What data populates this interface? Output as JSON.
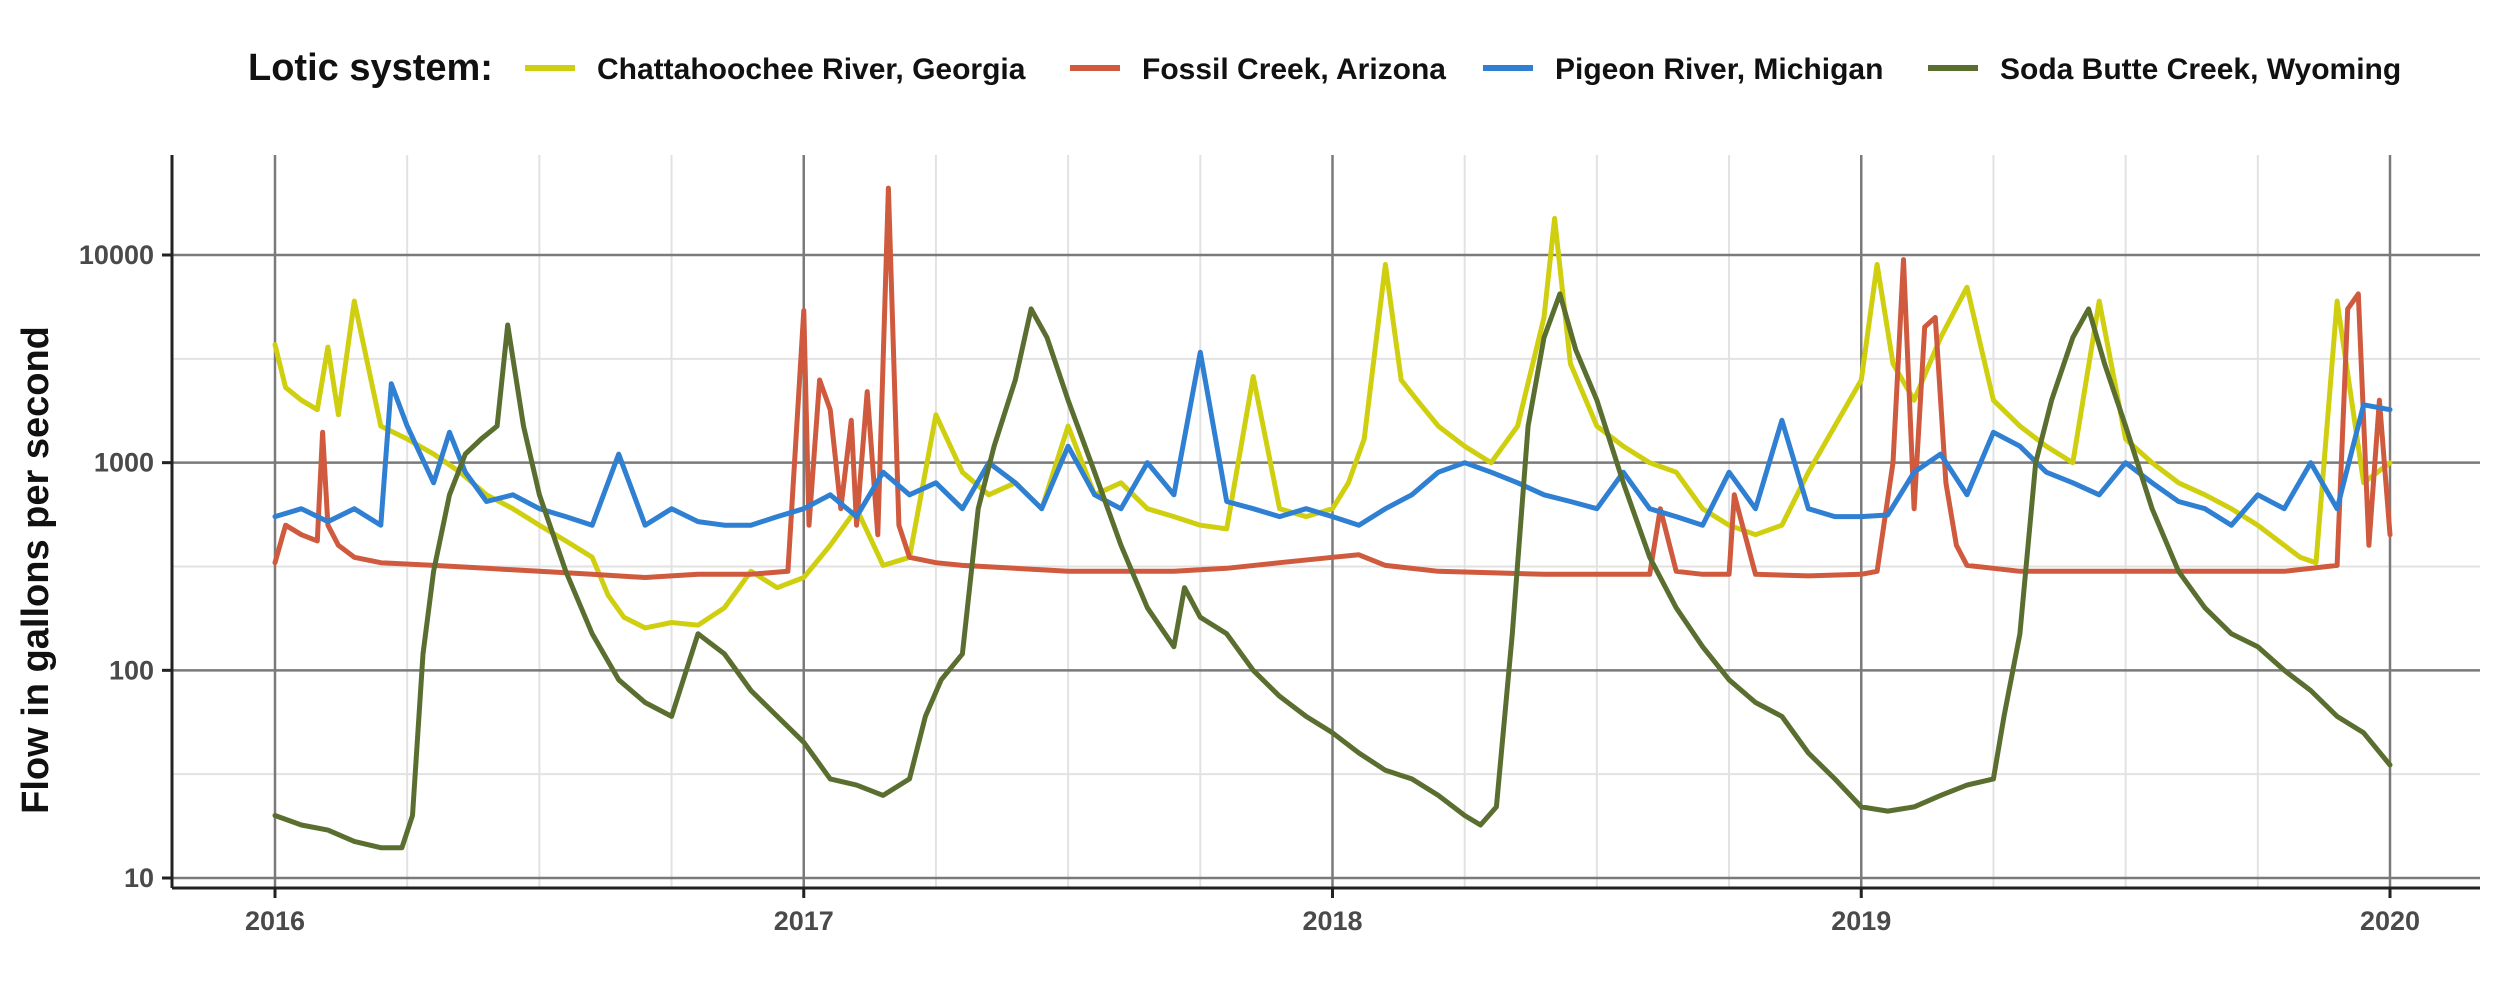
{
  "chart_data": {
    "type": "line",
    "title": "",
    "xlabel": "",
    "ylabel": "Flow in gallons per second",
    "yscale": "log10",
    "ylim": [
      10,
      30000
    ],
    "xlim": [
      2015.8,
      2020.2
    ],
    "x_ticks": [
      2016,
      2017,
      2018,
      2019,
      2020
    ],
    "x_tick_labels": [
      "2016",
      "2017",
      "2018",
      "2019",
      "2020"
    ],
    "y_ticks": [
      10,
      100,
      1000,
      10000
    ],
    "y_tick_labels": [
      "10",
      "100",
      "1000",
      "10000"
    ],
    "grid": true,
    "legend": {
      "title": "Lotic system:",
      "placement": "top",
      "entries": [
        "Chattahoochee River, Georgia",
        "Fossil Creek, Arizona",
        "Pigeon River, Michigan",
        "Soda Butte Creek, Wyoming"
      ]
    },
    "series": [
      {
        "name": "Chattahoochee River, Georgia",
        "color": "#cfcf10",
        "x": [
          2016.0,
          2016.02,
          2016.05,
          2016.08,
          2016.1,
          2016.12,
          2016.15,
          2016.2,
          2016.25,
          2016.3,
          2016.35,
          2016.4,
          2016.45,
          2016.5,
          2016.55,
          2016.6,
          2016.63,
          2016.66,
          2016.7,
          2016.75,
          2016.8,
          2016.85,
          2016.9,
          2016.95,
          2017.0,
          2017.05,
          2017.1,
          2017.15,
          2017.2,
          2017.25,
          2017.3,
          2017.35,
          2017.4,
          2017.45,
          2017.5,
          2017.55,
          2017.6,
          2017.65,
          2017.7,
          2017.75,
          2017.8,
          2017.85,
          2017.9,
          2017.95,
          2018.0,
          2018.03,
          2018.06,
          2018.1,
          2018.13,
          2018.16,
          2018.2,
          2018.25,
          2018.3,
          2018.35,
          2018.4,
          2018.42,
          2018.45,
          2018.5,
          2018.55,
          2018.6,
          2018.65,
          2018.7,
          2018.75,
          2018.8,
          2018.85,
          2018.9,
          2018.95,
          2019.0,
          2019.03,
          2019.06,
          2019.1,
          2019.15,
          2019.2,
          2019.25,
          2019.3,
          2019.35,
          2019.4,
          2019.45,
          2019.5,
          2019.55,
          2019.6,
          2019.65,
          2019.7,
          2019.75,
          2019.8,
          2019.83,
          2019.86,
          2019.9,
          2019.95,
          2020.0
        ],
        "values": [
          3700,
          2300,
          2000,
          1800,
          3600,
          1700,
          6000,
          1500,
          1300,
          1100,
          900,
          700,
          600,
          500,
          420,
          350,
          230,
          180,
          160,
          170,
          165,
          200,
          300,
          250,
          280,
          400,
          600,
          320,
          350,
          1700,
          900,
          700,
          800,
          600,
          1500,
          700,
          800,
          600,
          550,
          500,
          480,
          2600,
          600,
          550,
          600,
          800,
          1300,
          9000,
          2500,
          2000,
          1500,
          1200,
          1000,
          1500,
          5000,
          15000,
          3000,
          1500,
          1200,
          1000,
          900,
          600,
          500,
          450,
          500,
          900,
          1500,
          2500,
          9000,
          3000,
          2000,
          4000,
          7000,
          2000,
          1500,
          1200,
          1000,
          6000,
          1300,
          1000,
          800,
          700,
          600,
          500,
          400,
          350,
          330,
          6000,
          800,
          1000
        ]
      },
      {
        "name": "Fossil Creek, Arizona",
        "color": "#cf5a3e",
        "x": [
          2016.0,
          2016.02,
          2016.05,
          2016.08,
          2016.09,
          2016.1,
          2016.12,
          2016.15,
          2016.2,
          2016.3,
          2016.4,
          2016.5,
          2016.6,
          2016.7,
          2016.8,
          2016.9,
          2016.97,
          2017.0,
          2017.01,
          2017.03,
          2017.05,
          2017.07,
          2017.09,
          2017.1,
          2017.12,
          2017.14,
          2017.16,
          2017.18,
          2017.2,
          2017.25,
          2017.3,
          2017.4,
          2017.5,
          2017.6,
          2017.7,
          2017.8,
          2017.9,
          2018.0,
          2018.05,
          2018.1,
          2018.2,
          2018.3,
          2018.4,
          2018.5,
          2018.6,
          2018.62,
          2018.65,
          2018.7,
          2018.75,
          2018.76,
          2018.8,
          2018.9,
          2019.0,
          2019.03,
          2019.06,
          2019.08,
          2019.1,
          2019.12,
          2019.14,
          2019.16,
          2019.18,
          2019.2,
          2019.25,
          2019.3,
          2019.4,
          2019.5,
          2019.6,
          2019.7,
          2019.8,
          2019.9,
          2019.92,
          2019.94,
          2019.96,
          2019.98,
          2020.0
        ],
        "values": [
          330,
          500,
          450,
          420,
          1400,
          500,
          400,
          350,
          330,
          320,
          310,
          300,
          290,
          280,
          290,
          290,
          300,
          5400,
          500,
          2500,
          1800,
          600,
          1600,
          500,
          2200,
          450,
          21000,
          500,
          350,
          330,
          320,
          310,
          300,
          300,
          300,
          310,
          330,
          350,
          360,
          320,
          300,
          295,
          290,
          290,
          290,
          600,
          300,
          290,
          290,
          700,
          290,
          285,
          290,
          300,
          1000,
          9500,
          600,
          4500,
          5000,
          800,
          400,
          320,
          310,
          300,
          300,
          300,
          300,
          300,
          300,
          320,
          5500,
          6500,
          400,
          2000,
          450
        ]
      },
      {
        "name": "Pigeon River, Michigan",
        "color": "#2f7fd2",
        "x": [
          2016.0,
          2016.05,
          2016.1,
          2016.15,
          2016.2,
          2016.22,
          2016.25,
          2016.3,
          2016.33,
          2016.36,
          2016.4,
          2016.45,
          2016.5,
          2016.55,
          2016.6,
          2016.65,
          2016.7,
          2016.75,
          2016.8,
          2016.85,
          2016.9,
          2016.95,
          2017.0,
          2017.05,
          2017.1,
          2017.15,
          2017.2,
          2017.25,
          2017.3,
          2017.35,
          2017.4,
          2017.45,
          2017.5,
          2017.55,
          2017.6,
          2017.65,
          2017.7,
          2017.75,
          2017.8,
          2017.85,
          2017.9,
          2017.95,
          2018.0,
          2018.05,
          2018.1,
          2018.15,
          2018.2,
          2018.25,
          2018.3,
          2018.35,
          2018.4,
          2018.45,
          2018.5,
          2018.55,
          2018.6,
          2018.65,
          2018.7,
          2018.75,
          2018.8,
          2018.85,
          2018.9,
          2018.95,
          2019.0,
          2019.05,
          2019.1,
          2019.15,
          2019.2,
          2019.25,
          2019.3,
          2019.35,
          2019.4,
          2019.45,
          2019.5,
          2019.55,
          2019.6,
          2019.65,
          2019.7,
          2019.75,
          2019.8,
          2019.85,
          2019.9,
          2019.95,
          2020.0
        ],
        "values": [
          550,
          600,
          520,
          600,
          500,
          2400,
          1500,
          800,
          1400,
          900,
          650,
          700,
          600,
          550,
          500,
          1100,
          500,
          600,
          520,
          500,
          500,
          550,
          600,
          700,
          550,
          900,
          700,
          800,
          600,
          1000,
          800,
          600,
          1200,
          700,
          600,
          1000,
          700,
          3400,
          650,
          600,
          550,
          600,
          550,
          500,
          600,
          700,
          900,
          1000,
          900,
          800,
          700,
          650,
          600,
          900,
          600,
          550,
          500,
          900,
          600,
          1600,
          600,
          550,
          550,
          560,
          900,
          1100,
          700,
          1400,
          1200,
          900,
          800,
          700,
          1000,
          800,
          650,
          600,
          500,
          700,
          600,
          1000,
          600,
          1900,
          1800
        ]
      },
      {
        "name": "Soda Butte Creek, Wyoming",
        "color": "#5a6e30",
        "x": [
          2016.0,
          2016.05,
          2016.1,
          2016.15,
          2016.2,
          2016.24,
          2016.26,
          2016.28,
          2016.3,
          2016.33,
          2016.36,
          2016.39,
          2016.42,
          2016.44,
          2016.47,
          2016.5,
          2016.55,
          2016.6,
          2016.65,
          2016.7,
          2016.75,
          2016.8,
          2016.85,
          2016.9,
          2016.95,
          2017.0,
          2017.05,
          2017.1,
          2017.15,
          2017.2,
          2017.23,
          2017.26,
          2017.3,
          2017.33,
          2017.36,
          2017.4,
          2017.43,
          2017.46,
          2017.5,
          2017.55,
          2017.6,
          2017.65,
          2017.7,
          2017.72,
          2017.75,
          2017.8,
          2017.85,
          2017.9,
          2017.95,
          2018.0,
          2018.05,
          2018.1,
          2018.15,
          2018.2,
          2018.25,
          2018.28,
          2018.31,
          2018.34,
          2018.37,
          2018.4,
          2018.43,
          2018.46,
          2018.5,
          2018.55,
          2018.6,
          2018.65,
          2018.7,
          2018.75,
          2018.8,
          2018.85,
          2018.9,
          2018.95,
          2019.0,
          2019.05,
          2019.1,
          2019.15,
          2019.2,
          2019.25,
          2019.27,
          2019.3,
          2019.33,
          2019.36,
          2019.4,
          2019.43,
          2019.46,
          2019.5,
          2019.55,
          2019.6,
          2019.65,
          2019.7,
          2019.75,
          2019.8,
          2019.85,
          2019.9,
          2019.95,
          2020.0
        ],
        "values": [
          20,
          18,
          17,
          15,
          14,
          14,
          20,
          120,
          300,
          700,
          1100,
          1300,
          1500,
          4600,
          1500,
          700,
          300,
          150,
          90,
          70,
          60,
          150,
          120,
          80,
          60,
          45,
          30,
          28,
          25,
          30,
          60,
          90,
          120,
          600,
          1200,
          2500,
          5500,
          4000,
          2000,
          900,
          400,
          200,
          130,
          250,
          180,
          150,
          100,
          75,
          60,
          50,
          40,
          33,
          30,
          25,
          20,
          18,
          22,
          150,
          1500,
          4000,
          6500,
          3500,
          2000,
          800,
          350,
          200,
          130,
          90,
          70,
          60,
          40,
          30,
          22,
          21,
          22,
          25,
          28,
          30,
          60,
          150,
          1000,
          2000,
          4000,
          5500,
          3000,
          1500,
          600,
          300,
          200,
          150,
          130,
          100,
          80,
          60,
          50,
          35
        ]
      }
    ]
  }
}
